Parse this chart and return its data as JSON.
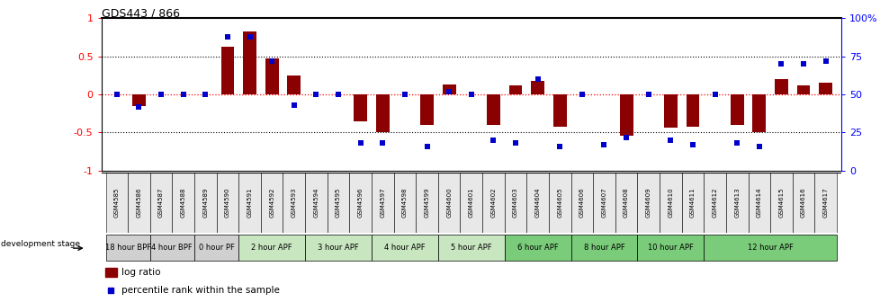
{
  "title": "GDS443 / 866",
  "samples": [
    "GSM4585",
    "GSM4586",
    "GSM4587",
    "GSM4588",
    "GSM4589",
    "GSM4590",
    "GSM4591",
    "GSM4592",
    "GSM4593",
    "GSM4594",
    "GSM4595",
    "GSM4596",
    "GSM4597",
    "GSM4598",
    "GSM4599",
    "GSM4600",
    "GSM4601",
    "GSM4602",
    "GSM4603",
    "GSM4604",
    "GSM4605",
    "GSM4606",
    "GSM4607",
    "GSM4608",
    "GSM4609",
    "GSM4610",
    "GSM4611",
    "GSM4612",
    "GSM4613",
    "GSM4614",
    "GSM4615",
    "GSM4616",
    "GSM4617"
  ],
  "log_ratio": [
    0.0,
    -0.15,
    0.0,
    0.0,
    0.0,
    0.62,
    0.82,
    0.47,
    0.25,
    0.0,
    0.0,
    -0.35,
    -0.5,
    0.0,
    -0.4,
    0.13,
    0.0,
    -0.4,
    0.12,
    0.18,
    -0.43,
    0.0,
    0.0,
    -0.54,
    0.0,
    -0.44,
    -0.42,
    0.0,
    -0.4,
    -0.5,
    0.2,
    0.12,
    0.15
  ],
  "percentile": [
    50,
    42,
    50,
    50,
    50,
    88,
    88,
    72,
    43,
    50,
    50,
    18,
    18,
    50,
    16,
    52,
    50,
    20,
    18,
    60,
    16,
    50,
    17,
    22,
    50,
    20,
    17,
    50,
    18,
    16,
    70,
    70,
    72
  ],
  "stage_groups": [
    {
      "label": "18 hour BPF",
      "start": 0,
      "end": 2,
      "color": "#d0d0d0"
    },
    {
      "label": "4 hour BPF",
      "start": 2,
      "end": 4,
      "color": "#d0d0d0"
    },
    {
      "label": "0 hour PF",
      "start": 4,
      "end": 6,
      "color": "#d0d0d0"
    },
    {
      "label": "2 hour APF",
      "start": 6,
      "end": 9,
      "color": "#c8e6c0"
    },
    {
      "label": "3 hour APF",
      "start": 9,
      "end": 12,
      "color": "#c8e6c0"
    },
    {
      "label": "4 hour APF",
      "start": 12,
      "end": 15,
      "color": "#c8e6c0"
    },
    {
      "label": "5 hour APF",
      "start": 15,
      "end": 18,
      "color": "#c8e6c0"
    },
    {
      "label": "6 hour APF",
      "start": 18,
      "end": 21,
      "color": "#7acc7a"
    },
    {
      "label": "8 hour APF",
      "start": 21,
      "end": 24,
      "color": "#7acc7a"
    },
    {
      "label": "10 hour APF",
      "start": 24,
      "end": 27,
      "color": "#7acc7a"
    },
    {
      "label": "12 hour APF",
      "start": 27,
      "end": 33,
      "color": "#7acc7a"
    }
  ],
  "bar_color": "#8B0000",
  "dot_color": "#0000CC",
  "ylim_left": [
    -1,
    1
  ],
  "ylim_right": [
    0,
    100
  ],
  "yticks_left": [
    -1,
    -0.5,
    0,
    0.5,
    1
  ],
  "yticks_right": [
    0,
    25,
    50,
    75,
    100
  ]
}
